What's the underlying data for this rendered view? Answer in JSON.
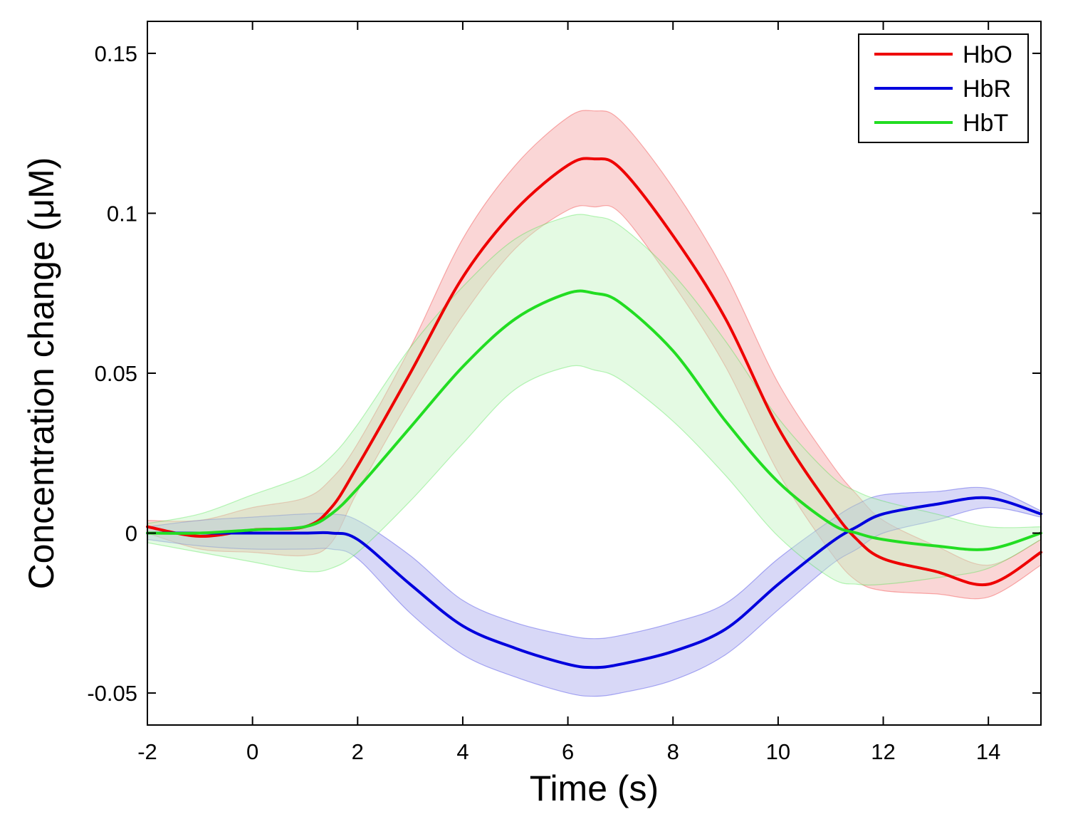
{
  "chart_data": {
    "type": "line",
    "title": "",
    "xlabel": "Time (s)",
    "ylabel": "Concentration change (μM)",
    "xlim": [
      -2,
      15
    ],
    "ylim": [
      -0.06,
      0.16
    ],
    "xticks": [
      -2,
      0,
      2,
      4,
      6,
      8,
      10,
      12,
      14
    ],
    "xtick_labels": [
      "-2",
      "0",
      "2",
      "4",
      "6",
      "8",
      "10",
      "12",
      "14"
    ],
    "yticks": [
      -0.05,
      0,
      0.05,
      0.1,
      0.15
    ],
    "ytick_labels": [
      "-0.05",
      "0",
      "0.05",
      "0.1",
      "0.15"
    ],
    "grid": false,
    "legend_position": "top-right",
    "x": [
      -2,
      -1,
      0,
      1,
      1.5,
      2,
      3,
      4,
      5,
      6,
      6.5,
      7,
      8,
      9,
      10,
      11,
      11.5,
      12,
      13,
      14,
      15
    ],
    "series": [
      {
        "name": "HbO",
        "color": "#ee0000",
        "band_color": "#f5a3a3",
        "values": [
          0.002,
          -0.001,
          0.001,
          0.002,
          0.008,
          0.021,
          0.05,
          0.08,
          0.101,
          0.115,
          0.117,
          0.114,
          0.093,
          0.067,
          0.033,
          0.008,
          -0.002,
          -0.008,
          -0.012,
          -0.016,
          -0.006
        ],
        "upper": [
          0.004,
          0.004,
          0.008,
          0.011,
          0.017,
          0.028,
          0.058,
          0.092,
          0.115,
          0.13,
          0.132,
          0.129,
          0.108,
          0.081,
          0.047,
          0.022,
          0.012,
          0.004,
          -0.004,
          -0.01,
          -0.002
        ],
        "lower": [
          0.0,
          -0.005,
          -0.006,
          -0.007,
          -0.003,
          0.013,
          0.042,
          0.068,
          0.089,
          0.101,
          0.102,
          0.1,
          0.078,
          0.052,
          0.019,
          -0.006,
          -0.015,
          -0.018,
          -0.019,
          -0.02,
          -0.01
        ]
      },
      {
        "name": "HbR",
        "color": "#0000dd",
        "band_color": "#a9a9ee",
        "values": [
          0.0,
          0.0,
          0.0,
          0.0,
          0.0,
          -0.002,
          -0.016,
          -0.029,
          -0.036,
          -0.041,
          -0.042,
          -0.041,
          -0.037,
          -0.03,
          -0.016,
          -0.003,
          0.002,
          0.006,
          0.009,
          0.011,
          0.006
        ],
        "upper": [
          0.002,
          0.004,
          0.005,
          0.006,
          0.006,
          0.004,
          -0.007,
          -0.021,
          -0.028,
          -0.032,
          -0.033,
          -0.032,
          -0.028,
          -0.022,
          -0.008,
          0.004,
          0.009,
          0.012,
          0.013,
          0.014,
          0.007
        ],
        "lower": [
          -0.002,
          -0.004,
          -0.005,
          -0.005,
          -0.005,
          -0.008,
          -0.025,
          -0.038,
          -0.045,
          -0.05,
          -0.051,
          -0.05,
          -0.046,
          -0.038,
          -0.024,
          -0.01,
          -0.005,
          0.0,
          0.004,
          0.008,
          0.005
        ]
      },
      {
        "name": "HbT",
        "color": "#22dd22",
        "band_color": "#c4f5c0",
        "values": [
          0.0,
          0.0,
          0.001,
          0.002,
          0.006,
          0.014,
          0.033,
          0.052,
          0.067,
          0.075,
          0.075,
          0.072,
          0.057,
          0.035,
          0.016,
          0.003,
          0.0,
          -0.002,
          -0.004,
          -0.005,
          0.0
        ],
        "upper": [
          0.003,
          0.006,
          0.012,
          0.018,
          0.024,
          0.034,
          0.058,
          0.077,
          0.092,
          0.099,
          0.099,
          0.096,
          0.081,
          0.06,
          0.036,
          0.018,
          0.013,
          0.01,
          0.006,
          0.002,
          0.002
        ],
        "lower": [
          -0.003,
          -0.006,
          -0.009,
          -0.012,
          -0.011,
          -0.006,
          0.01,
          0.028,
          0.045,
          0.052,
          0.051,
          0.048,
          0.035,
          0.018,
          -0.001,
          -0.014,
          -0.016,
          -0.016,
          -0.014,
          -0.011,
          -0.002
        ]
      }
    ]
  }
}
